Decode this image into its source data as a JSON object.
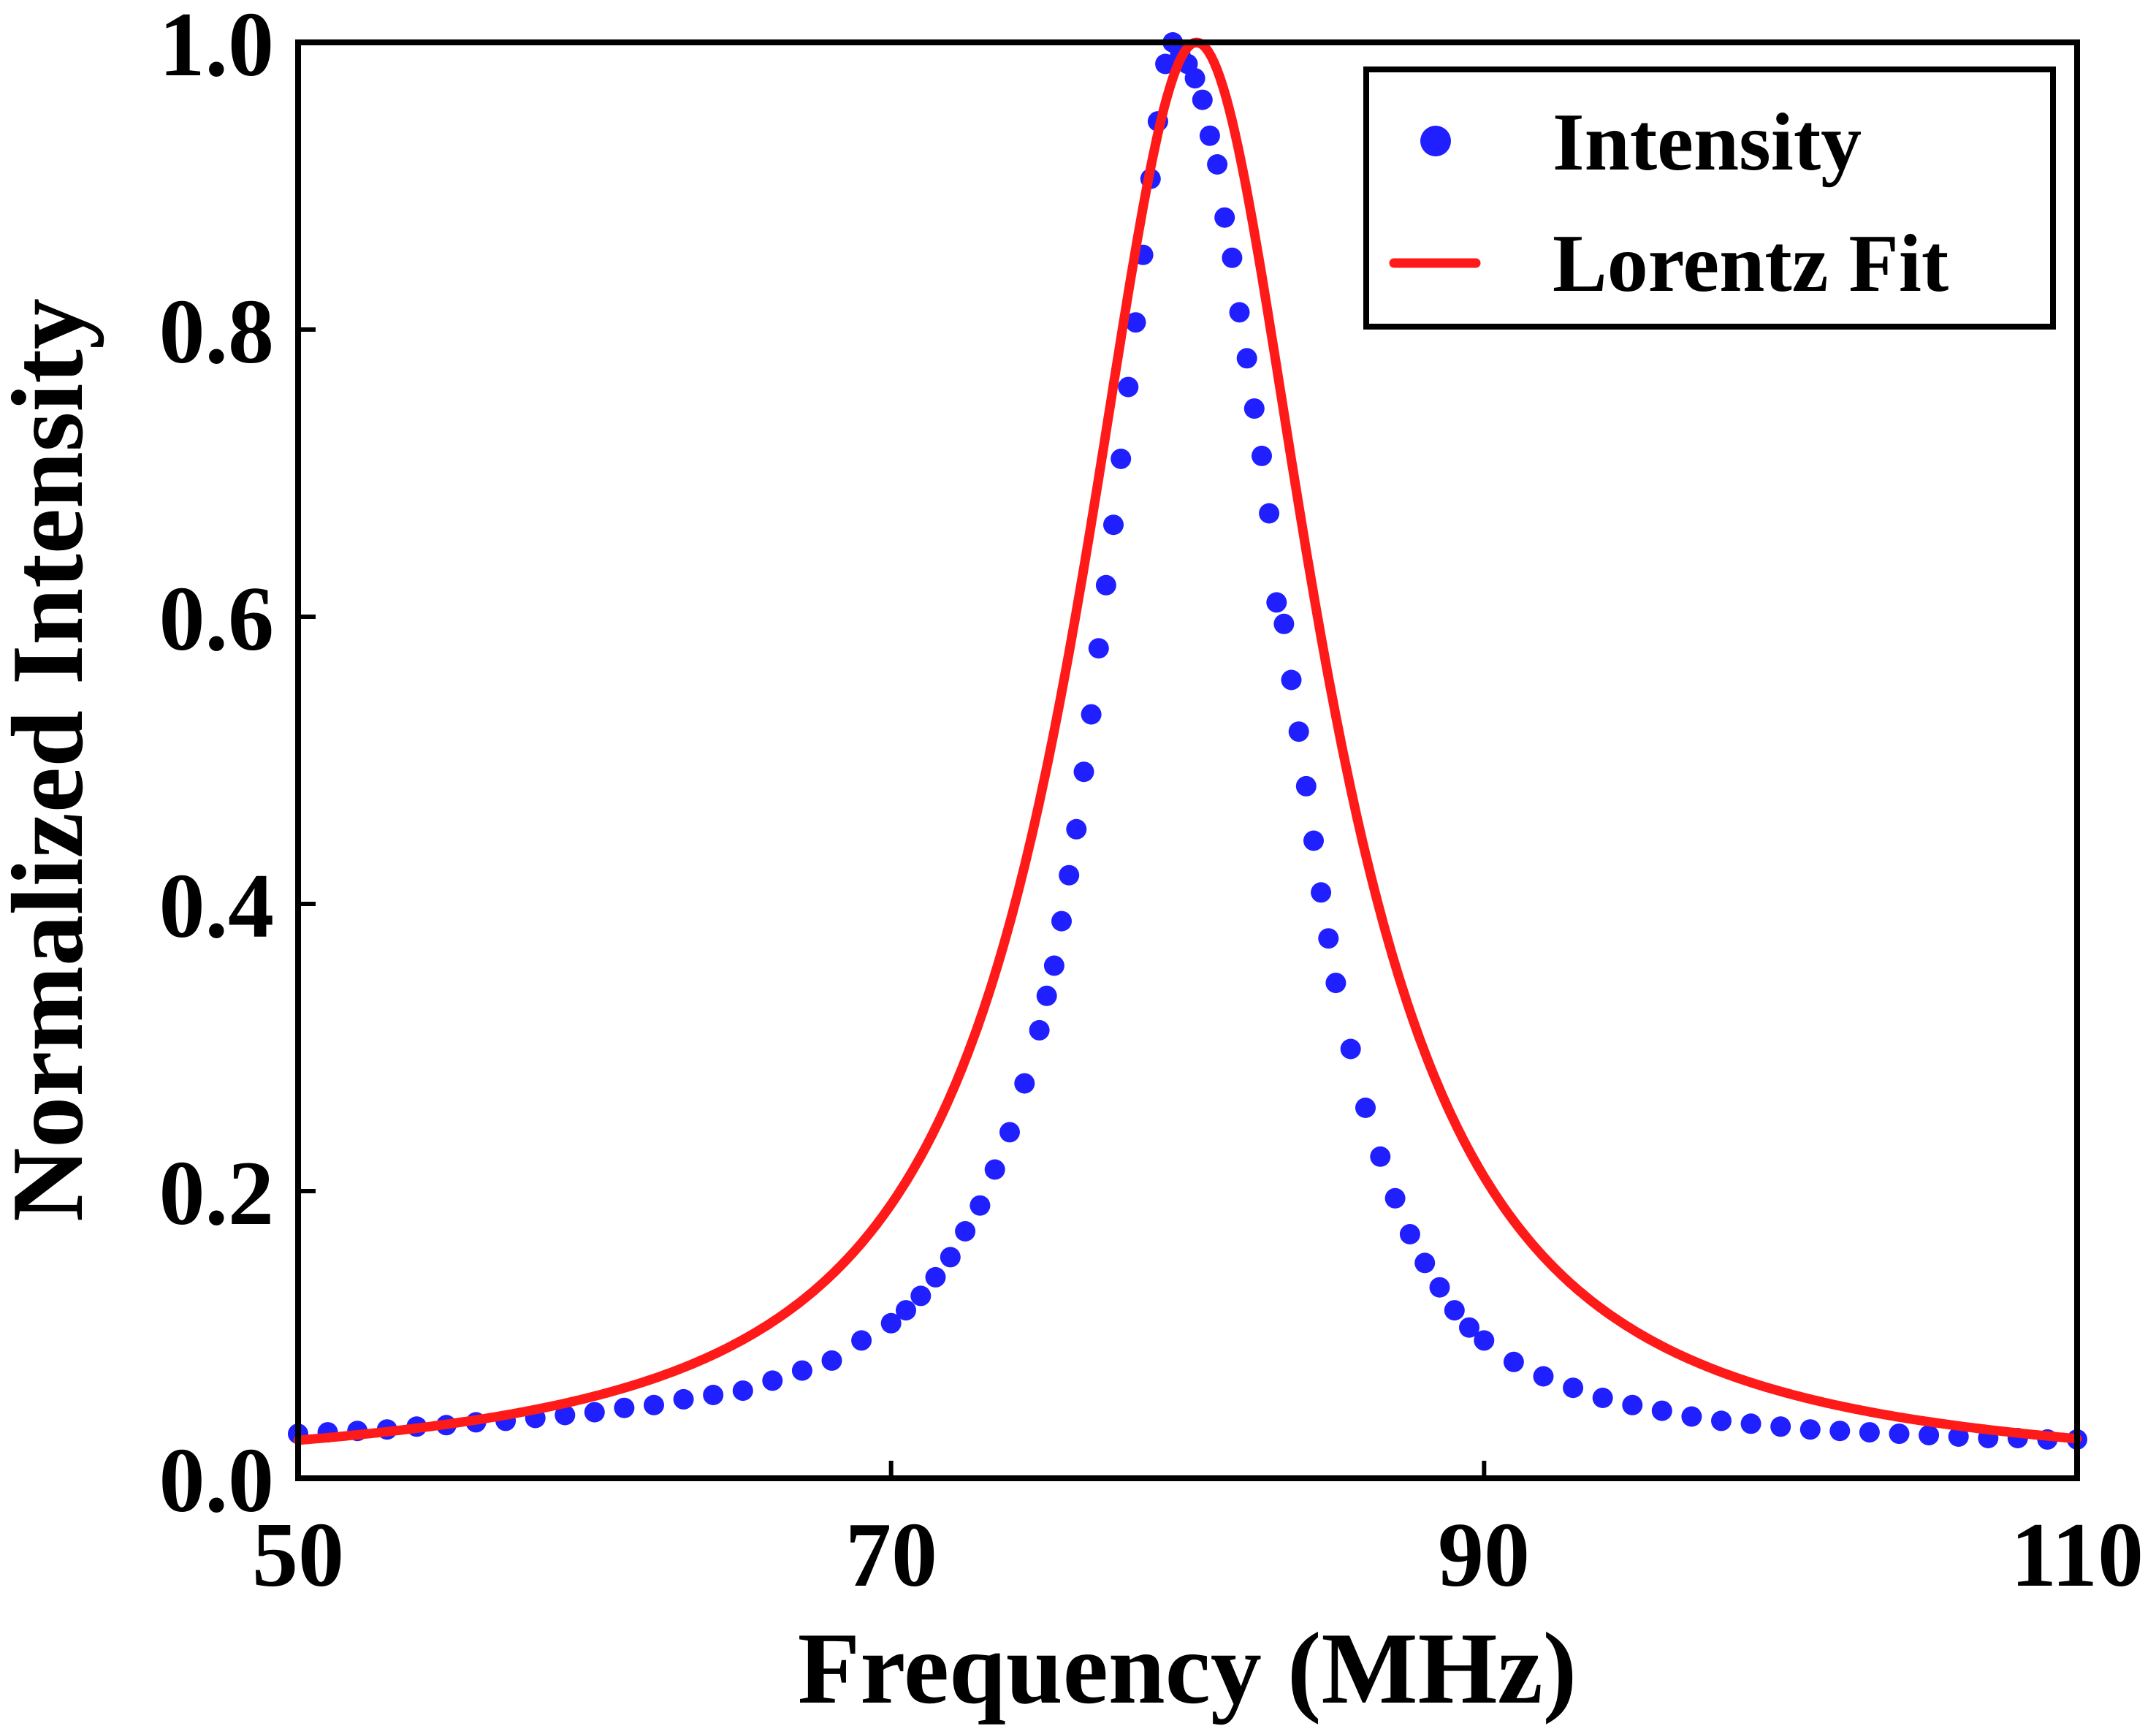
{
  "chart_data": {
    "type": "scatter",
    "xlabel": "Frequency (MHz)",
    "ylabel": "Normalized Intensity",
    "xlim": [
      50,
      110
    ],
    "ylim": [
      0.0,
      1.0
    ],
    "xticks": [
      "50",
      "70",
      "90",
      "110"
    ],
    "yticks": [
      "0.0",
      "0.2",
      "0.4",
      "0.6",
      "0.8",
      "1.0"
    ],
    "grid": false,
    "legend_position": "top-right",
    "colors": {
      "intensity": "#1f1fff",
      "fit": "#ff1a1a",
      "axes": "#000000"
    },
    "series": [
      {
        "name": "Intensity",
        "kind": "points",
        "x": [
          50,
          51,
          52,
          53,
          54,
          55,
          56,
          57,
          58,
          59,
          60,
          61,
          62,
          63,
          64,
          65,
          66,
          67,
          68,
          69,
          70,
          70.5,
          71,
          71.5,
          72,
          72.5,
          73,
          73.5,
          74,
          74.5,
          75,
          75.25,
          75.5,
          75.75,
          76,
          76.25,
          76.5,
          76.75,
          77,
          77.25,
          77.5,
          77.75,
          78,
          78.25,
          78.5,
          78.75,
          79,
          79.25,
          79.5,
          79.75,
          80,
          80.25,
          80.5,
          80.75,
          81,
          81.25,
          81.5,
          81.75,
          82,
          82.25,
          82.5,
          82.75,
          83,
          83.25,
          83.5,
          83.75,
          84,
          84.25,
          84.5,
          84.75,
          85,
          85.5,
          86,
          86.5,
          87,
          87.5,
          88,
          88.5,
          89,
          89.5,
          90,
          91,
          92,
          93,
          94,
          95,
          96,
          97,
          98,
          99,
          100,
          101,
          102,
          103,
          104,
          105,
          106,
          107,
          108,
          109,
          110
        ],
        "y": [
          0.031,
          0.032,
          0.033,
          0.034,
          0.036,
          0.037,
          0.039,
          0.04,
          0.042,
          0.044,
          0.046,
          0.049,
          0.051,
          0.055,
          0.058,
          0.061,
          0.068,
          0.075,
          0.082,
          0.096,
          0.108,
          0.117,
          0.127,
          0.14,
          0.154,
          0.172,
          0.19,
          0.215,
          0.241,
          0.275,
          0.312,
          0.336,
          0.357,
          0.388,
          0.42,
          0.452,
          0.492,
          0.532,
          0.578,
          0.622,
          0.664,
          0.71,
          0.76,
          0.805,
          0.852,
          0.905,
          0.945,
          0.985,
          1.0,
          0.992,
          0.985,
          0.975,
          0.96,
          0.935,
          0.915,
          0.878,
          0.85,
          0.812,
          0.78,
          0.745,
          0.712,
          0.672,
          0.61,
          0.595,
          0.556,
          0.52,
          0.482,
          0.444,
          0.408,
          0.376,
          0.345,
          0.299,
          0.258,
          0.224,
          0.195,
          0.17,
          0.15,
          0.133,
          0.117,
          0.105,
          0.096,
          0.081,
          0.071,
          0.063,
          0.056,
          0.051,
          0.047,
          0.043,
          0.04,
          0.038,
          0.036,
          0.034,
          0.033,
          0.032,
          0.031,
          0.03,
          0.029,
          0.028,
          0.028,
          0.027,
          0.027
        ]
      },
      {
        "name": "Lorentz Fit",
        "kind": "line",
        "model": "lorentzian",
        "center": 80.3,
        "fwhm": 10.0,
        "amplitude": 1.0
      }
    ]
  }
}
